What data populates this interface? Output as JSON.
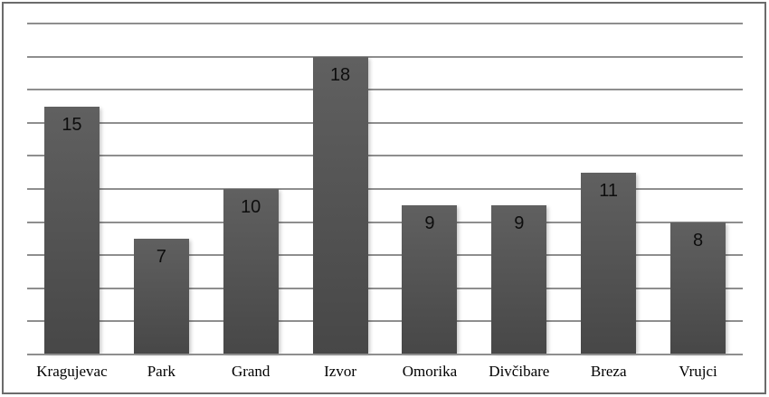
{
  "frame": {
    "border_color": "#6b6b6b",
    "background": "#ffffff"
  },
  "chart_data": {
    "type": "bar",
    "title": "",
    "xlabel": "",
    "ylabel": "",
    "categories": [
      "Kragujevac",
      "Park",
      "Grand",
      "Izvor",
      "Omorika",
      "Divčibare",
      "Breza",
      "Vrujci"
    ],
    "values": [
      15,
      7,
      10,
      18,
      9,
      9,
      11,
      8
    ],
    "ylim": [
      0,
      20
    ],
    "gridline_step": 2,
    "grid": true,
    "legend": false,
    "axis_tick_labels_shown": false,
    "data_label_position": "inside-end",
    "colors": {
      "bar_top": "#606060",
      "bar_bottom": "#474747",
      "gridline": "#8e8e8e",
      "axis_line": "#8e8e8e",
      "value_label": "#0d0d0d",
      "category_label": "#000000"
    }
  }
}
